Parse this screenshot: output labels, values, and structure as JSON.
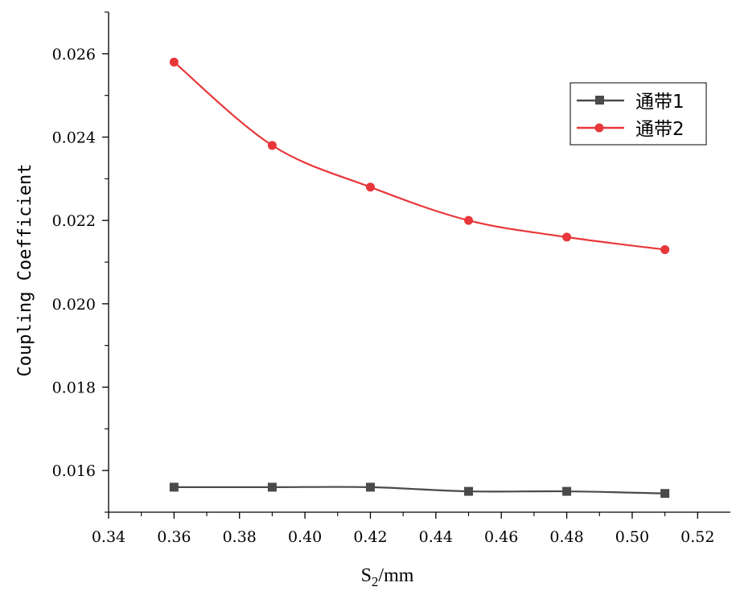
{
  "chart_data": {
    "type": "line",
    "title": "",
    "xlabel": "S2/mm",
    "xlabel_main": "S",
    "xlabel_sub": "2",
    "xlabel_unit": "/mm",
    "ylabel": "Coupling Coefficient",
    "xlim": [
      0.34,
      0.53
    ],
    "ylim": [
      0.015,
      0.027
    ],
    "x_ticks": [
      "0.34",
      "0.36",
      "0.38",
      "0.40",
      "0.42",
      "0.44",
      "0.46",
      "0.48",
      "0.50",
      "0.52"
    ],
    "x_tick_values": [
      0.34,
      0.36,
      0.38,
      0.4,
      0.42,
      0.44,
      0.46,
      0.48,
      0.5,
      0.52
    ],
    "y_ticks": [
      "0.016",
      "0.018",
      "0.020",
      "0.022",
      "0.024",
      "0.026"
    ],
    "y_tick_values": [
      0.016,
      0.018,
      0.02,
      0.022,
      0.024,
      0.026
    ],
    "grid": false,
    "legend_position": "top-right",
    "x": [
      0.36,
      0.39,
      0.42,
      0.45,
      0.48,
      0.51
    ],
    "series": [
      {
        "name": "通带1",
        "values": [
          0.0156,
          0.0156,
          0.0156,
          0.0155,
          0.0155,
          0.01545
        ],
        "color": "#4a4a4a",
        "marker": "square"
      },
      {
        "name": "通带2",
        "values": [
          0.0258,
          0.0238,
          0.0228,
          0.022,
          0.0216,
          0.0213
        ],
        "color": "#e8373a",
        "marker": "circle"
      }
    ]
  }
}
